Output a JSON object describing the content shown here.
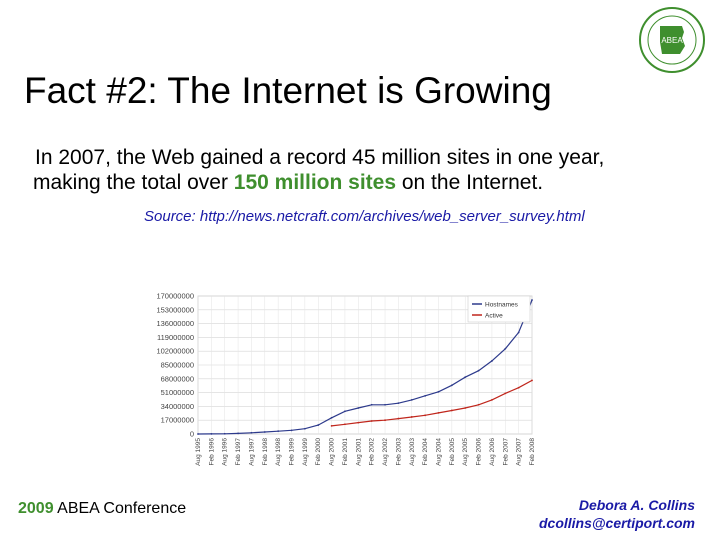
{
  "slide": {
    "title": "Fact #2:  The Internet is Growing",
    "body": {
      "line1": "In 2007, the Web gained a record 45  million sites in one year,",
      "line2_pre": "making the total over ",
      "line2_highlight": "150 million sites",
      "line2_post": " on the Internet."
    },
    "source": "Source: http://news.netcraft.com/archives/web_server_survey.html"
  },
  "logo": {
    "text": "ABEA"
  },
  "footer": {
    "year": "2009",
    "conference": " ABEA Conference",
    "author": "Debora A. Collins",
    "email": "dcollins@certiport.com"
  },
  "colors": {
    "green": "#3f8f2e",
    "blue": "#1a1aa6",
    "series_total": "#2d3a8c",
    "series_active": "#c0261c"
  },
  "chart_data": {
    "type": "line",
    "title": "",
    "xlabel": "",
    "ylabel": "",
    "ylim": [
      0,
      170000000
    ],
    "yticks": [
      "170000000",
      "153000000",
      "136000000",
      "119000000",
      "102000000",
      "85000000",
      "68000000",
      "51000000",
      "34000000",
      "17000000",
      "0"
    ],
    "x": [
      "Aug 1995",
      "Feb 1996",
      "Aug 1996",
      "Feb 1997",
      "Aug 1997",
      "Feb 1998",
      "Aug 1998",
      "Feb 1999",
      "Aug 1999",
      "Feb 2000",
      "Aug 2000",
      "Feb 2001",
      "Aug 2001",
      "Feb 2002",
      "Aug 2002",
      "Feb 2003",
      "Aug 2003",
      "Feb 2004",
      "Aug 2004",
      "Feb 2005",
      "Aug 2005",
      "Feb 2006",
      "Aug 2006",
      "Feb 2007",
      "Aug 2007",
      "Feb 2008"
    ],
    "series": [
      {
        "name": "Hostnames",
        "values": [
          0,
          100000,
          300000,
          700000,
          1500000,
          2500000,
          3500000,
          4500000,
          6500000,
          11000000,
          20000000,
          28000000,
          32000000,
          36000000,
          36000000,
          38000000,
          42000000,
          47000000,
          52000000,
          60000000,
          70000000,
          78000000,
          90000000,
          105000000,
          125000000,
          165000000
        ]
      },
      {
        "name": "Active",
        "values": [
          null,
          null,
          null,
          null,
          null,
          null,
          null,
          null,
          null,
          null,
          10000000,
          12000000,
          14000000,
          16000000,
          17000000,
          19000000,
          21000000,
          23000000,
          26000000,
          29000000,
          32000000,
          36000000,
          42000000,
          50000000,
          57000000,
          66000000
        ]
      }
    ],
    "x_tick_labels": [
      "Aug 1995",
      "Feb 1996",
      "Aug 1996",
      "Feb 1997",
      "Aug 1997",
      "Feb 1998",
      "Aug 1998",
      "Feb 1999",
      "Aug 1999",
      "Feb 2000",
      "Aug 2000",
      "Feb 2001",
      "Aug 2001",
      "Feb 2002",
      "Aug 2002",
      "Feb 2003",
      "Aug 2003",
      "Feb 2004",
      "Aug 2004",
      "Feb 2005",
      "Aug 2005",
      "Feb 2006",
      "Aug 2006",
      "Feb 2007",
      "Aug 2007",
      "Feb 2008"
    ],
    "legend": {
      "placement": "top-right"
    },
    "grid": true
  }
}
